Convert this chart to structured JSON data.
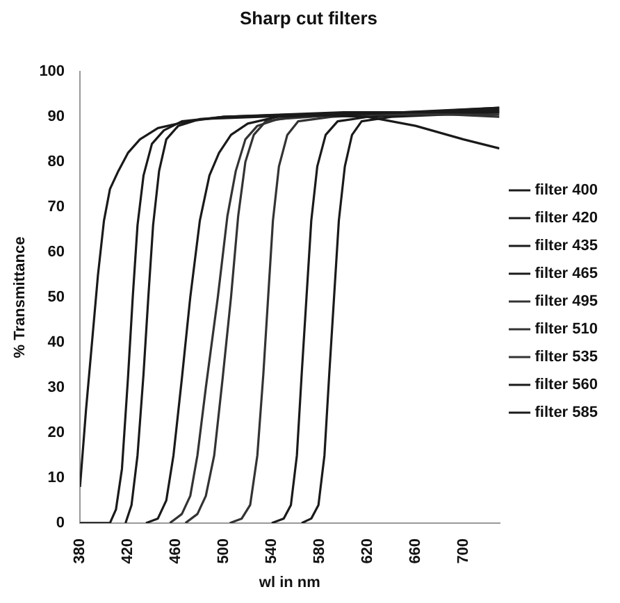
{
  "chart_data": {
    "type": "line",
    "title": "Sharp cut filters",
    "xlabel": "wl in nm",
    "ylabel": "% Transmittance",
    "xlim": [
      380,
      730
    ],
    "xticks": [
      380,
      420,
      460,
      500,
      540,
      580,
      620,
      660,
      700
    ],
    "ylim": [
      0,
      100
    ],
    "yticks": [
      0,
      10,
      20,
      30,
      40,
      50,
      60,
      70,
      80,
      90,
      100
    ],
    "grid": false,
    "legend": "right",
    "marker": "none",
    "line_style": "solid",
    "series": [
      {
        "name": "filter 400",
        "color": "#1a1a1a",
        "x": [
          380,
          385,
          390,
          395,
          400,
          405,
          412,
          420,
          430,
          445,
          470,
          500,
          560,
          620,
          660,
          700,
          730
        ],
        "values": [
          8,
          25,
          40,
          55,
          67,
          74,
          78,
          82,
          85,
          87.5,
          89,
          90,
          90.5,
          90,
          88,
          85,
          83
        ]
      },
      {
        "name": "filter 420",
        "color": "#1a1a1a",
        "x": [
          380,
          405,
          410,
          415,
          420,
          424,
          428,
          433,
          440,
          450,
          465,
          500,
          600,
          730
        ],
        "values": [
          0,
          0,
          3,
          12,
          32,
          50,
          66,
          77,
          84,
          87,
          89,
          90,
          91,
          91
        ]
      },
      {
        "name": "filter 435",
        "color": "#1a1a1a",
        "x": [
          418,
          423,
          428,
          433,
          437,
          441,
          446,
          452,
          462,
          480,
          530,
          650,
          730
        ],
        "values": [
          0,
          4,
          15,
          33,
          50,
          66,
          78,
          85,
          88,
          89.5,
          90,
          91,
          91.5
        ]
      },
      {
        "name": "filter 465",
        "color": "#1a1a1a",
        "x": [
          435,
          445,
          452,
          458,
          465,
          472,
          480,
          488,
          496,
          506,
          520,
          545,
          650,
          730
        ],
        "values": [
          0,
          1,
          5,
          15,
          32,
          50,
          67,
          77,
          82,
          86,
          88.5,
          90,
          91,
          92
        ]
      },
      {
        "name": "filter 495",
        "color": "#333333",
        "x": [
          455,
          465,
          472,
          478,
          485,
          495,
          503,
          510,
          518,
          528,
          545,
          600,
          730
        ],
        "values": [
          0,
          2,
          6,
          15,
          30,
          50,
          68,
          78,
          85,
          88,
          89.5,
          90.5,
          90.5
        ]
      },
      {
        "name": "filter 510",
        "color": "#333333",
        "x": [
          468,
          478,
          485,
          492,
          499,
          506,
          512,
          518,
          525,
          535,
          560,
          650,
          730
        ],
        "values": [
          0,
          2,
          6,
          15,
          32,
          50,
          68,
          80,
          86,
          89,
          90,
          91,
          90
        ]
      },
      {
        "name": "filter 535",
        "color": "#333333",
        "x": [
          505,
          515,
          522,
          528,
          533,
          537,
          541,
          546,
          553,
          562,
          590,
          730
        ],
        "values": [
          0,
          1,
          4,
          15,
          33,
          50,
          67,
          79,
          86,
          89,
          90,
          92
        ]
      },
      {
        "name": "filter 560",
        "color": "#1a1a1a",
        "x": [
          540,
          550,
          556,
          561,
          565,
          569,
          573,
          578,
          585,
          595,
          620,
          730
        ],
        "values": [
          0,
          1,
          4,
          15,
          33,
          50,
          67,
          79,
          86,
          89,
          90,
          91.5
        ]
      },
      {
        "name": "filter 585",
        "color": "#1a1a1a",
        "x": [
          565,
          573,
          579,
          584,
          588,
          592,
          596,
          601,
          607,
          615,
          640,
          730
        ],
        "values": [
          0,
          1,
          4,
          15,
          33,
          50,
          67,
          79,
          86,
          89,
          90,
          91
        ]
      }
    ]
  }
}
